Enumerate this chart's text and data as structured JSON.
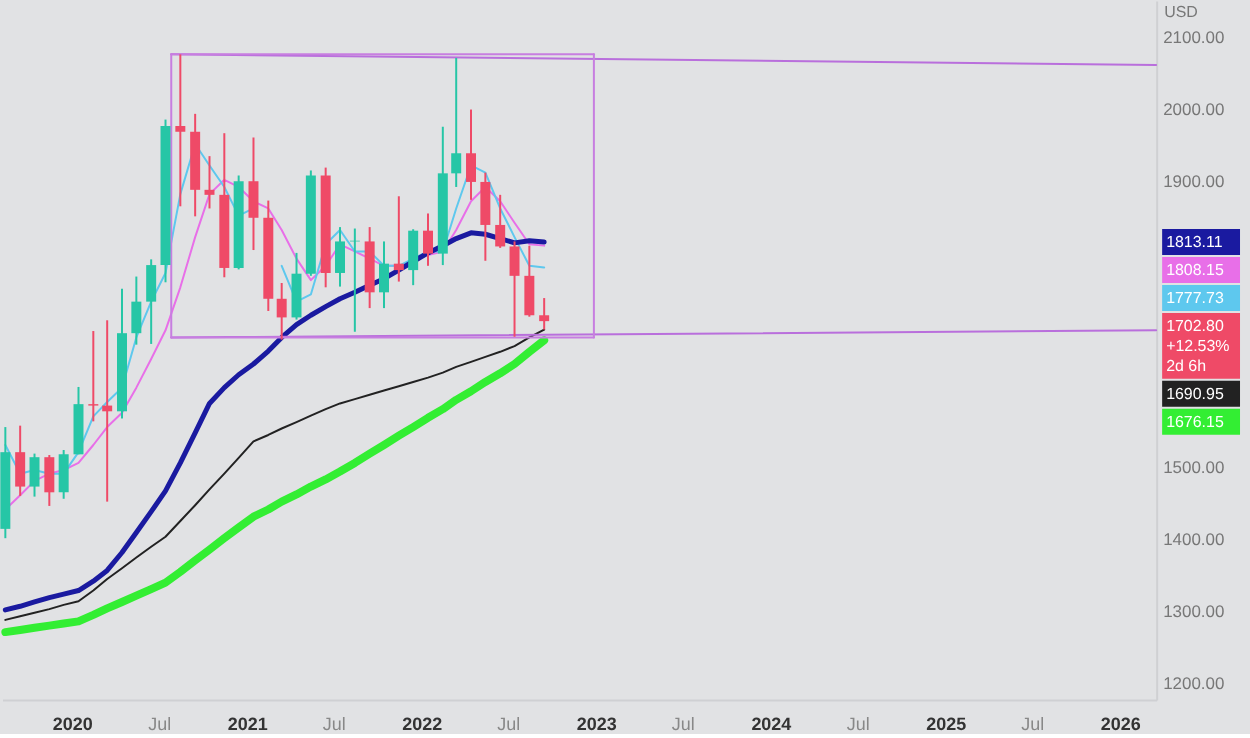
{
  "chart_data": {
    "type": "candlestick",
    "ylabel": "USD",
    "x": [
      "2019-08-15",
      "2019-09-15",
      "2019-10-15",
      "2019-11-15",
      "2019-12-15",
      "2020-01-15",
      "2020-02-15",
      "2020-03-15",
      "2020-04-15",
      "2020-05-15",
      "2020-06-15",
      "2020-07-15",
      "2020-08-15",
      "2020-09-15",
      "2020-10-15",
      "2020-11-15",
      "2020-12-15",
      "2021-01-15",
      "2021-02-15",
      "2021-03-15",
      "2021-04-15",
      "2021-05-15",
      "2021-06-15",
      "2021-07-15",
      "2021-08-15",
      "2021-09-15",
      "2021-10-15",
      "2021-11-15",
      "2021-12-15",
      "2022-01-15",
      "2022-02-15",
      "2022-03-15",
      "2022-04-15",
      "2022-05-15",
      "2022-06-15",
      "2022-07-15",
      "2022-08-15",
      "2022-09-15"
    ],
    "xlim": [
      "2019-08-08",
      "2026-03-18"
    ],
    "xticks": [
      {
        "value": "2020-01-01",
        "label": "2020"
      },
      {
        "value": "2020-07-01",
        "label": "Jul"
      },
      {
        "value": "2021-01-01",
        "label": "2021"
      },
      {
        "value": "2021-07-01",
        "label": "Jul"
      },
      {
        "value": "2022-01-01",
        "label": "2022"
      },
      {
        "value": "2022-07-01",
        "label": "Jul"
      },
      {
        "value": "2023-01-01",
        "label": "2023"
      },
      {
        "value": "2023-07-01",
        "label": "Jul"
      },
      {
        "value": "2024-01-01",
        "label": "2024"
      },
      {
        "value": "2024-07-01",
        "label": "Jul"
      },
      {
        "value": "2025-01-01",
        "label": "2025"
      },
      {
        "value": "2025-07-01",
        "label": "Jul"
      },
      {
        "value": "2026-01-01",
        "label": "2026"
      }
    ],
    "ylim": [
      1175,
      2150
    ],
    "yticks": [
      {
        "value": 1200,
        "label": "1200.00"
      },
      {
        "value": 1300,
        "label": "1300.00"
      },
      {
        "value": 1400,
        "label": "1400.00"
      },
      {
        "value": 1500,
        "label": "1500.00"
      },
      {
        "value": 1900,
        "label": "1900.00"
      },
      {
        "value": 2000,
        "label": "2000.00"
      },
      {
        "value": 2100,
        "label": "2100.00"
      }
    ],
    "series": [
      {
        "ohlc": [
          [
            1413,
            1555,
            1400,
            1520
          ],
          [
            1520,
            1557,
            1459,
            1472
          ],
          [
            1472,
            1518,
            1458,
            1513
          ],
          [
            1513,
            1516,
            1445,
            1464
          ],
          [
            1464,
            1523,
            1455,
            1517
          ],
          [
            1517,
            1611,
            1517,
            1587
          ],
          [
            1587,
            1689,
            1563,
            1585
          ],
          [
            1585,
            1704,
            1451,
            1577
          ],
          [
            1577,
            1748,
            1567,
            1686
          ],
          [
            1686,
            1765,
            1670,
            1730
          ],
          [
            1730,
            1789,
            1671,
            1781
          ],
          [
            1781,
            1984,
            1757,
            1975
          ],
          [
            1975,
            2075,
            1863,
            1967
          ],
          [
            1967,
            1992,
            1849,
            1886
          ],
          [
            1886,
            1933,
            1860,
            1879
          ],
          [
            1879,
            1965,
            1764,
            1777
          ],
          [
            1777,
            1906,
            1775,
            1898
          ],
          [
            1898,
            1959,
            1802,
            1847
          ],
          [
            1847,
            1871,
            1717,
            1734
          ],
          [
            1734,
            1756,
            1677,
            1708
          ],
          [
            1708,
            1798,
            1705,
            1769
          ],
          [
            1769,
            1913,
            1766,
            1906
          ],
          [
            1906,
            1917,
            1750,
            1770
          ],
          [
            1770,
            1834,
            1751,
            1814
          ],
          [
            1814,
            1832,
            1688,
            1815
          ],
          [
            1814,
            1834,
            1721,
            1743
          ],
          [
            1743,
            1814,
            1721,
            1783
          ],
          [
            1783,
            1877,
            1758,
            1774
          ],
          [
            1774,
            1831,
            1753,
            1829
          ],
          [
            1829,
            1853,
            1780,
            1797
          ],
          [
            1797,
            1974,
            1781,
            1909
          ],
          [
            1909,
            2070,
            1890,
            1937
          ],
          [
            1937,
            1998,
            1872,
            1897
          ],
          [
            1897,
            1910,
            1787,
            1837
          ],
          [
            1837,
            1879,
            1805,
            1807
          ],
          [
            1807,
            1814,
            1681,
            1766
          ],
          [
            1766,
            1808,
            1709,
            1711
          ],
          [
            1711,
            1735,
            1691,
            1702.8
          ]
        ],
        "colors": [
          "#26c6a6",
          "#ef4a67",
          "#26c6a6",
          "#ef4a67",
          "#26c6a6",
          "#26c6a6",
          "#ef4a67",
          "#ef4a67",
          "#26c6a6",
          "#26c6a6",
          "#26c6a6",
          "#26c6a6",
          "#ef4a67",
          "#ef4a67",
          "#ef4a67",
          "#ef4a67",
          "#26c6a6",
          "#ef4a67",
          "#ef4a67",
          "#ef4a67",
          "#26c6a6",
          "#26c6a6",
          "#ef4a67",
          "#26c6a6",
          "#26c6a6",
          "#ef4a67",
          "#26c6a6",
          "#ef4a67",
          "#26c6a6",
          "#ef4a67",
          "#26c6a6",
          "#26c6a6",
          "#ef4a67",
          "#ef4a67",
          "#ef4a67",
          "#ef4a67",
          "#ef4a67",
          "#ef4a67"
        ]
      },
      {
        "type": "line",
        "color": "#e86fe8",
        "values": [
          1440,
          1460,
          1480,
          1490,
          1495,
          1505,
          1530,
          1555,
          1575,
          1610,
          1650,
          1690,
          1750,
          1820,
          1880,
          1900,
          1890,
          1870,
          1860,
          1830,
          1790,
          1760,
          1780,
          1810,
          1800,
          1790,
          1780,
          1780,
          null,
          1795,
          1800,
          1830,
          1870,
          1890,
          1870,
          1840,
          1810,
          1808.15
        ]
      },
      {
        "type": "line",
        "color": "#5ec8ee",
        "values": [
          1530,
          1490,
          1495,
          1490,
          1490,
          1520,
          1570,
          1590,
          1610,
          1680,
          1730,
          1770,
          1880,
          1950,
          1920,
          1890,
          1850,
          1860,
          null,
          1780,
          1730,
          1740,
          1810,
          1830,
          1800,
          1800,
          1780,
          1780,
          1790,
          1800,
          1800,
          1860,
          1920,
          1910,
          1860,
          1820,
          1780,
          1777.73
        ]
      },
      {
        "type": "line",
        "color": "#1a1aa0",
        "values": [
          1300,
          1305,
          1311,
          1317,
          1322,
          1327,
          1340,
          1355,
          1380,
          1408,
          1437,
          1466,
          1505,
          1547,
          1588,
          1610,
          1628,
          1643,
          1661,
          1680,
          1698,
          1711,
          1723,
          1734,
          1743,
          1753,
          1762,
          1774,
          1786,
          1798,
          1808,
          1818,
          1826,
          1824,
          1818,
          1812,
          1815,
          1813.11
        ]
      },
      {
        "type": "line",
        "color": "#222222",
        "values": [
          1286,
          1291,
          1296,
          1301,
          1307,
          1312,
          1327,
          1343,
          1358,
          1373,
          1388,
          1402,
          1424,
          1446,
          1468,
          1490,
          1512,
          1535,
          1544,
          1553,
          1562,
          1571,
          1580,
          1588,
          1594,
          1600,
          1606,
          1612,
          1618,
          1624,
          1631,
          1639,
          1646,
          1653,
          1660,
          1668,
          1680,
          1690.95
        ]
      },
      {
        "type": "line",
        "color": "#33ee33",
        "values": [
          1269,
          1272,
          1275,
          1278,
          1281,
          1284,
          1293,
          1302,
          1311,
          1320,
          1329,
          1338,
          1353,
          1369,
          1384,
          1400,
          1415,
          1430,
          1440,
          1451,
          1461,
          1472,
          1482,
          1493,
          1505,
          1518,
          1530,
          1543,
          1555,
          1568,
          1580,
          1593,
          1605,
          1618,
          1630,
          1643,
          1660,
          1676.15
        ]
      },
      {
        "type": "line",
        "color": "#b96fdc",
        "x": [
          "2020-07-27",
          "2026-03-18"
        ],
        "values": [
          2075,
          2060
        ]
      },
      {
        "type": "line",
        "color": "#b96fdc",
        "x": [
          "2020-07-27",
          "2026-03-18"
        ],
        "values": [
          1680,
          1690
        ]
      },
      {
        "type": "line",
        "color": "#c77ee0",
        "x": [
          "2020-07-27",
          "2022-12-28"
        ],
        "values": [
          2075,
          2075
        ]
      },
      {
        "type": "line",
        "color": "#c77ee0",
        "x": [
          "2022-12-28",
          "2022-12-28"
        ],
        "values": [
          2075,
          1680
        ]
      },
      {
        "type": "line",
        "color": "#c77ee0",
        "x": [
          "2020-07-27",
          "2022-12-28"
        ],
        "values": [
          1680,
          1680
        ]
      },
      {
        "type": "line",
        "color": "#c77ee0",
        "x": [
          "2020-07-27",
          "2020-07-27"
        ],
        "values": [
          1680,
          2075
        ]
      }
    ],
    "annotations": [
      "1808.15",
      "1777.73",
      "1813.11",
      "1690.95",
      "1676.15",
      "1702.80",
      "+12.53%",
      "2d 6h"
    ]
  }
}
